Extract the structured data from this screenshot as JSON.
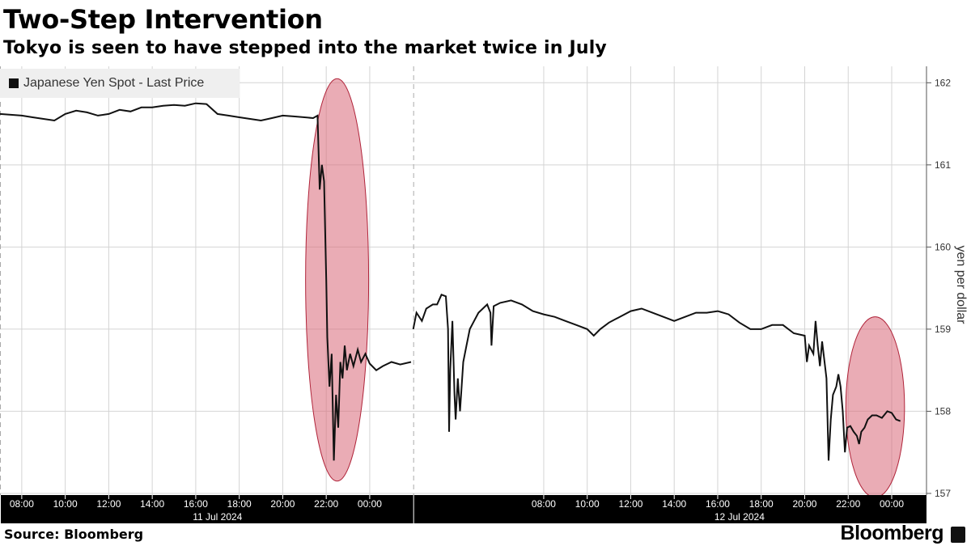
{
  "header": {
    "title": "Two-Step Intervention",
    "subtitle": "Tokyo is seen to have stepped into the market twice in July"
  },
  "footer": {
    "source": "Source: Bloomberg",
    "brand": "Bloomberg"
  },
  "colors": {
    "line": "#111111",
    "highlight_fill": "#d96878",
    "highlight_stroke": "#b0243a",
    "grid": "#d4d4d4",
    "axis_band": "#000000"
  },
  "chart_data": {
    "type": "line",
    "legend": {
      "position": "top-left",
      "entries": [
        "Japanese Yen Spot - Last Price"
      ]
    },
    "ylabel": "yen per dollar",
    "ylim": [
      156.98,
      162.2
    ],
    "yticks": [
      157,
      158,
      159,
      160,
      161,
      162
    ],
    "grid": true,
    "x_unit": "hours after 00:00 on 11 Jul 2024 (continuous scale, gap overnight)",
    "xticks": [
      {
        "x": 8,
        "label": "08:00"
      },
      {
        "x": 10,
        "label": "10:00"
      },
      {
        "x": 12,
        "label": "12:00"
      },
      {
        "x": 14,
        "label": "14:00"
      },
      {
        "x": 16,
        "label": "16:00"
      },
      {
        "x": 18,
        "label": "18:00"
      },
      {
        "x": 20,
        "label": "20:00"
      },
      {
        "x": 22,
        "label": "22:00"
      },
      {
        "x": 24,
        "label": "00:00"
      },
      {
        "x": 32,
        "label": "08:00"
      },
      {
        "x": 34,
        "label": "10:00"
      },
      {
        "x": 36,
        "label": "12:00"
      },
      {
        "x": 38,
        "label": "14:00"
      },
      {
        "x": 40,
        "label": "16:00"
      },
      {
        "x": 42,
        "label": "18:00"
      },
      {
        "x": 44,
        "label": "20:00"
      },
      {
        "x": 46,
        "label": "22:00"
      },
      {
        "x": 48,
        "label": "00:00"
      }
    ],
    "date_labels": [
      {
        "x": 17,
        "label": "11 Jul 2024"
      },
      {
        "x": 41,
        "label": "12 Jul 2024"
      }
    ],
    "xrange": [
      7.0,
      49.6
    ],
    "day_separators": [
      7.0,
      26.0
    ],
    "annotations": [
      {
        "type": "ellipse",
        "x_center": 22.5,
        "y_center": 159.6,
        "x_radius": 1.45,
        "y_radius": 2.45
      },
      {
        "type": "ellipse",
        "x_center": 47.24,
        "y_center": 158.05,
        "x_radius": 1.35,
        "y_radius": 1.1
      }
    ],
    "series": [
      {
        "name": "Japanese Yen Spot - Last Price",
        "segments": [
          [
            [
              7.0,
              161.62
            ],
            [
              7.5,
              161.61
            ],
            [
              8.0,
              161.6
            ],
            [
              8.5,
              161.58
            ],
            [
              9.0,
              161.56
            ],
            [
              9.5,
              161.54
            ],
            [
              10.0,
              161.62
            ],
            [
              10.5,
              161.66
            ],
            [
              11.0,
              161.64
            ],
            [
              11.5,
              161.6
            ],
            [
              12.0,
              161.62
            ],
            [
              12.5,
              161.67
            ],
            [
              13.0,
              161.65
            ],
            [
              13.5,
              161.7
            ],
            [
              14.0,
              161.7
            ],
            [
              14.5,
              161.72
            ],
            [
              15.0,
              161.73
            ],
            [
              15.5,
              161.72
            ],
            [
              16.0,
              161.75
            ],
            [
              16.5,
              161.74
            ],
            [
              17.0,
              161.62
            ],
            [
              17.5,
              161.6
            ],
            [
              18.0,
              161.58
            ],
            [
              18.5,
              161.56
            ],
            [
              19.0,
              161.54
            ],
            [
              19.5,
              161.57
            ],
            [
              20.0,
              161.6
            ],
            [
              20.5,
              161.59
            ],
            [
              21.0,
              161.58
            ],
            [
              21.4,
              161.57
            ],
            [
              21.6,
              161.6
            ],
            [
              21.7,
              160.7
            ],
            [
              21.8,
              161.0
            ],
            [
              21.9,
              160.8
            ],
            [
              22.0,
              159.6
            ],
            [
              22.05,
              158.9
            ],
            [
              22.15,
              158.3
            ],
            [
              22.25,
              158.7
            ],
            [
              22.35,
              157.4
            ],
            [
              22.45,
              158.2
            ],
            [
              22.55,
              157.8
            ],
            [
              22.65,
              158.6
            ],
            [
              22.75,
              158.4
            ],
            [
              22.85,
              158.8
            ],
            [
              22.95,
              158.5
            ],
            [
              23.1,
              158.7
            ],
            [
              23.25,
              158.55
            ],
            [
              23.45,
              158.75
            ],
            [
              23.6,
              158.6
            ],
            [
              23.8,
              158.7
            ],
            [
              24.0,
              158.58
            ],
            [
              24.3,
              158.5
            ],
            [
              24.6,
              158.55
            ],
            [
              25.0,
              158.6
            ],
            [
              25.4,
              158.57
            ],
            [
              25.9,
              158.6
            ]
          ],
          [
            [
              26.0,
              159.0
            ],
            [
              26.15,
              159.2
            ],
            [
              26.4,
              159.1
            ],
            [
              26.6,
              159.25
            ],
            [
              26.9,
              159.3
            ],
            [
              27.1,
              159.3
            ],
            [
              27.3,
              159.42
            ],
            [
              27.5,
              159.4
            ],
            [
              27.6,
              159.0
            ],
            [
              27.65,
              157.75
            ],
            [
              27.7,
              158.5
            ],
            [
              27.8,
              159.1
            ],
            [
              27.9,
              158.2
            ],
            [
              27.95,
              157.9
            ],
            [
              28.05,
              158.4
            ],
            [
              28.15,
              158.0
            ],
            [
              28.3,
              158.6
            ],
            [
              28.45,
              158.8
            ],
            [
              28.6,
              159.0
            ],
            [
              28.8,
              159.1
            ],
            [
              29.0,
              159.2
            ],
            [
              29.2,
              159.25
            ],
            [
              29.4,
              159.3
            ],
            [
              29.55,
              159.2
            ],
            [
              29.6,
              158.8
            ],
            [
              29.7,
              159.28
            ],
            [
              30.0,
              159.32
            ],
            [
              30.5,
              159.35
            ],
            [
              31.0,
              159.3
            ],
            [
              31.5,
              159.22
            ],
            [
              32.0,
              159.18
            ],
            [
              32.5,
              159.15
            ],
            [
              33.0,
              159.1
            ],
            [
              33.5,
              159.05
            ],
            [
              34.0,
              159.0
            ],
            [
              34.3,
              158.92
            ],
            [
              34.6,
              159.0
            ],
            [
              35.0,
              159.08
            ],
            [
              35.5,
              159.15
            ],
            [
              36.0,
              159.22
            ],
            [
              36.5,
              159.25
            ],
            [
              37.0,
              159.2
            ],
            [
              37.5,
              159.15
            ],
            [
              38.0,
              159.1
            ],
            [
              38.5,
              159.15
            ],
            [
              39.0,
              159.2
            ],
            [
              39.5,
              159.2
            ],
            [
              40.0,
              159.22
            ],
            [
              40.5,
              159.18
            ],
            [
              41.0,
              159.08
            ],
            [
              41.5,
              159.0
            ],
            [
              42.0,
              159.0
            ],
            [
              42.5,
              159.05
            ],
            [
              43.0,
              159.05
            ],
            [
              43.5,
              158.95
            ],
            [
              44.0,
              158.92
            ],
            [
              44.1,
              158.6
            ],
            [
              44.2,
              158.8
            ],
            [
              44.4,
              158.7
            ],
            [
              44.5,
              159.1
            ],
            [
              44.6,
              158.8
            ],
            [
              44.7,
              158.55
            ],
            [
              44.8,
              158.85
            ],
            [
              45.0,
              158.4
            ],
            [
              45.1,
              157.4
            ],
            [
              45.2,
              157.9
            ],
            [
              45.3,
              158.2
            ],
            [
              45.45,
              158.3
            ],
            [
              45.55,
              158.45
            ],
            [
              45.65,
              158.3
            ],
            [
              45.75,
              158.0
            ],
            [
              45.85,
              157.5
            ],
            [
              45.95,
              157.8
            ],
            [
              46.1,
              157.82
            ],
            [
              46.25,
              157.75
            ],
            [
              46.4,
              157.7
            ],
            [
              46.5,
              157.6
            ],
            [
              46.6,
              157.75
            ],
            [
              46.75,
              157.8
            ],
            [
              46.9,
              157.9
            ],
            [
              47.1,
              157.95
            ],
            [
              47.3,
              157.95
            ],
            [
              47.55,
              157.92
            ],
            [
              47.8,
              158.0
            ],
            [
              48.0,
              157.98
            ],
            [
              48.2,
              157.9
            ],
            [
              48.4,
              157.88
            ]
          ]
        ]
      }
    ]
  }
}
